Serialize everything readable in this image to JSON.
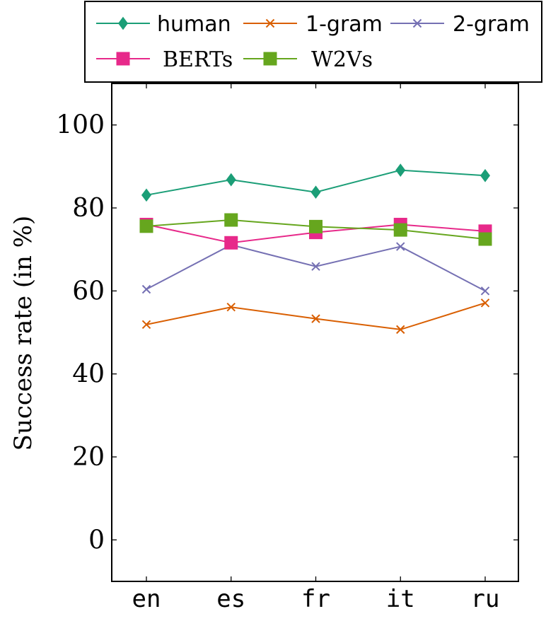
{
  "chart_data": {
    "type": "line",
    "title": "",
    "xlabel": "",
    "ylabel": "Success rate (in %)",
    "categories": [
      "en",
      "es",
      "fr",
      "it",
      "ru"
    ],
    "ylim": [
      -10,
      110
    ],
    "yticks": [
      0,
      20,
      40,
      60,
      80,
      100
    ],
    "grid": false,
    "legend_position": "top",
    "series": [
      {
        "name": "human",
        "marker": "diamond",
        "color": "#1b9e77",
        "values": [
          83.1,
          86.8,
          83.8,
          89.1,
          87.8
        ]
      },
      {
        "name": "1-gram",
        "marker": "x",
        "color": "#d95f02",
        "values": [
          51.9,
          56.1,
          53.3,
          50.7,
          57.1
        ]
      },
      {
        "name": "2-gram",
        "marker": "x",
        "color": "#7570b3",
        "values": [
          60.4,
          71.1,
          65.9,
          70.7,
          60.0
        ]
      },
      {
        "name": "BERTs",
        "marker": "square",
        "color": "#e7298a",
        "values": [
          76.0,
          71.6,
          74.1,
          76.0,
          74.4
        ]
      },
      {
        "name": "W2Vs",
        "marker": "square",
        "color": "#66a61e",
        "values": [
          75.6,
          77.1,
          75.5,
          74.7,
          72.5
        ]
      }
    ]
  }
}
